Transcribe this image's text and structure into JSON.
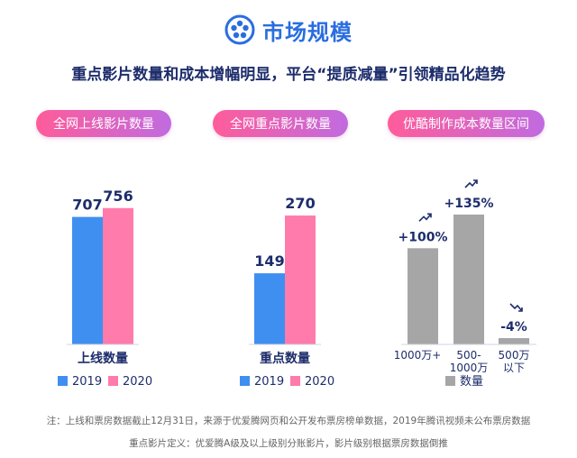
{
  "header": {
    "title": "市场规模",
    "logo_icon": "film-reel-icon"
  },
  "subtitle": "重点影片数量和成本增幅明显，平台“提质减量”引领精品化趋势",
  "pills": [
    "全网上线影片数量",
    "全网重点影片数量",
    "优酷制作成本数量区间"
  ],
  "colors": {
    "series_2019": "#3f8ff0",
    "series_2020": "#ff7bab",
    "gray_bar": "#a6a6a6",
    "accent_blue": "#2a6de0",
    "navy": "#1d2d6b"
  },
  "chart_data": [
    {
      "type": "bar",
      "categories": [
        "上线数量"
      ],
      "series": [
        {
          "name": "2019",
          "values": [
            707
          ]
        },
        {
          "name": "2020",
          "values": [
            756
          ]
        }
      ],
      "data_labels": [
        "707",
        "756"
      ],
      "legend": [
        "2019",
        "2020"
      ],
      "legend_position": "bottom",
      "ylim": [
        0,
        900
      ]
    },
    {
      "type": "bar",
      "categories": [
        "重点数量"
      ],
      "series": [
        {
          "name": "2019",
          "values": [
            149
          ]
        },
        {
          "name": "2020",
          "values": [
            270
          ]
        }
      ],
      "data_labels": [
        "149",
        "270"
      ],
      "legend": [
        "2019",
        "2020"
      ],
      "legend_position": "bottom",
      "ylim": [
        0,
        340
      ]
    },
    {
      "type": "bar",
      "categories": [
        "1000万+",
        "500-1000万",
        "500万以下"
      ],
      "category_lines": [
        [
          "1000万+"
        ],
        [
          "500-",
          "1000万"
        ],
        [
          "500万",
          "以下"
        ]
      ],
      "series": [
        {
          "name": "数量",
          "values": [
            100,
            135,
            -4
          ]
        }
      ],
      "data_labels": [
        "+100%",
        "+135%",
        "-4%"
      ],
      "trend_icons": [
        "trend-up-icon",
        "trend-up-icon",
        "trend-down-icon"
      ],
      "legend": [
        "数量"
      ],
      "legend_position": "bottom"
    }
  ],
  "notes": [
    "注：上线和票房数据截止12月31日，来源于优爱腾网页和公开发布票房榜单数据，2019年腾讯视频未公布票房数据",
    "重点影片定义：优爱腾A级及以上级别分账影片，影片级别根据票房数据倒推"
  ]
}
